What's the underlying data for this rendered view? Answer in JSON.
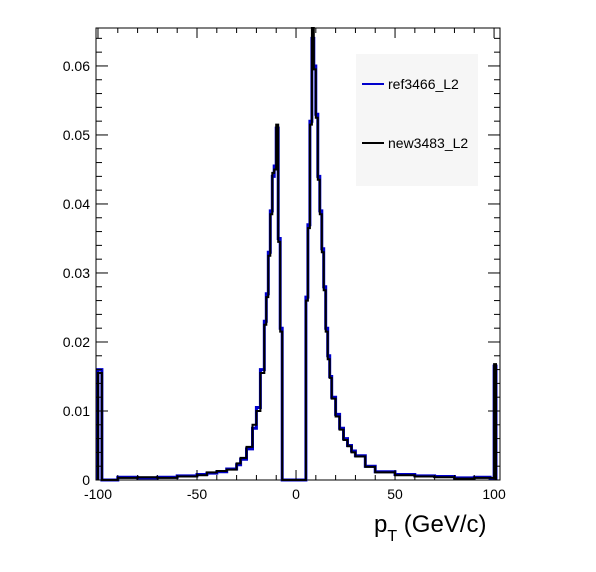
{
  "chart_data": {
    "type": "line",
    "title": "",
    "xlabel": "p",
    "xlabel_sub": "T",
    "xlabel_unit": " (GeV/c)",
    "ylabel": "",
    "xlim": [
      -101,
      103
    ],
    "ylim": [
      0,
      0.0655
    ],
    "grid": false,
    "legend_position": "top-right",
    "x_ticks": [
      {
        "value": -100,
        "label": "-100"
      },
      {
        "value": -50,
        "label": "-50"
      },
      {
        "value": 0,
        "label": "0"
      },
      {
        "value": 50,
        "label": "50"
      },
      {
        "value": 100,
        "label": "100"
      }
    ],
    "y_ticks": [
      {
        "value": 0,
        "label": "0"
      },
      {
        "value": 0.01,
        "label": "0.01"
      },
      {
        "value": 0.02,
        "label": "0.02"
      },
      {
        "value": 0.03,
        "label": "0.03"
      },
      {
        "value": 0.04,
        "label": "0.04"
      },
      {
        "value": 0.05,
        "label": "0.05"
      },
      {
        "value": 0.06,
        "label": "0.06"
      }
    ],
    "series": [
      {
        "name": "ref3466_L2",
        "color": "#0000cc",
        "points": [
          [
            -100,
            0.016
          ],
          [
            -98,
            0.0
          ],
          [
            -90,
            0.0004
          ],
          [
            -80,
            0.0003
          ],
          [
            -70,
            0.0004
          ],
          [
            -60,
            0.0006
          ],
          [
            -50,
            0.0008
          ],
          [
            -45,
            0.001
          ],
          [
            -40,
            0.0012
          ],
          [
            -35,
            0.0016
          ],
          [
            -30,
            0.0022
          ],
          [
            -28,
            0.003
          ],
          [
            -25,
            0.0045
          ],
          [
            -22,
            0.0075
          ],
          [
            -20,
            0.0105
          ],
          [
            -18,
            0.016
          ],
          [
            -16,
            0.023
          ],
          [
            -15,
            0.027
          ],
          [
            -14,
            0.033
          ],
          [
            -13,
            0.039
          ],
          [
            -12,
            0.044
          ],
          [
            -11,
            0.0455
          ],
          [
            -10,
            0.051
          ],
          [
            -9,
            0.035
          ],
          [
            -8,
            0.022
          ],
          [
            -7,
            0.0
          ],
          [
            -6,
            0.0
          ],
          [
            -4,
            0.0
          ],
          [
            -2,
            0.0
          ],
          [
            0,
            0.0
          ],
          [
            2,
            0.0
          ],
          [
            4,
            0.0
          ],
          [
            5,
            0.0265
          ],
          [
            6,
            0.037
          ],
          [
            7,
            0.052
          ],
          [
            8,
            0.064
          ],
          [
            9,
            0.06
          ],
          [
            10,
            0.053
          ],
          [
            11,
            0.044
          ],
          [
            12,
            0.039
          ],
          [
            13,
            0.0335
          ],
          [
            14,
            0.028
          ],
          [
            15,
            0.022
          ],
          [
            16,
            0.018
          ],
          [
            17,
            0.015
          ],
          [
            18,
            0.012
          ],
          [
            20,
            0.0095
          ],
          [
            22,
            0.0075
          ],
          [
            24,
            0.006
          ],
          [
            26,
            0.005
          ],
          [
            28,
            0.0042
          ],
          [
            30,
            0.0035
          ],
          [
            35,
            0.002
          ],
          [
            40,
            0.0012
          ],
          [
            50,
            0.0008
          ],
          [
            60,
            0.0006
          ],
          [
            70,
            0.0005
          ],
          [
            80,
            0.0003
          ],
          [
            90,
            0.0004
          ],
          [
            98,
            0.0002
          ],
          [
            100,
            0.0165
          ],
          [
            101,
            0.0
          ]
        ]
      },
      {
        "name": "new3483_L2",
        "color": "#000000",
        "points": [
          [
            -100,
            0.0155
          ],
          [
            -98,
            0.0
          ],
          [
            -90,
            0.0003
          ],
          [
            -80,
            0.0004
          ],
          [
            -70,
            0.0003
          ],
          [
            -60,
            0.0005
          ],
          [
            -50,
            0.0007
          ],
          [
            -45,
            0.0011
          ],
          [
            -40,
            0.0013
          ],
          [
            -35,
            0.0015
          ],
          [
            -30,
            0.0024
          ],
          [
            -28,
            0.0032
          ],
          [
            -25,
            0.0048
          ],
          [
            -22,
            0.008
          ],
          [
            -20,
            0.01
          ],
          [
            -18,
            0.0155
          ],
          [
            -16,
            0.0225
          ],
          [
            -15,
            0.0265
          ],
          [
            -14,
            0.0325
          ],
          [
            -13,
            0.0385
          ],
          [
            -12,
            0.0445
          ],
          [
            -11,
            0.045
          ],
          [
            -10,
            0.0515
          ],
          [
            -9,
            0.0345
          ],
          [
            -8,
            0.0215
          ],
          [
            -7,
            0.0
          ],
          [
            -6,
            0.0
          ],
          [
            -4,
            0.0
          ],
          [
            -2,
            0.0
          ],
          [
            0,
            0.0
          ],
          [
            2,
            0.0
          ],
          [
            4,
            0.0
          ],
          [
            5,
            0.026
          ],
          [
            6,
            0.0365
          ],
          [
            7,
            0.0515
          ],
          [
            8,
            0.0655
          ],
          [
            9,
            0.0595
          ],
          [
            10,
            0.0525
          ],
          [
            11,
            0.0435
          ],
          [
            12,
            0.0385
          ],
          [
            13,
            0.033
          ],
          [
            14,
            0.0275
          ],
          [
            15,
            0.0215
          ],
          [
            16,
            0.0175
          ],
          [
            17,
            0.0148
          ],
          [
            18,
            0.0118
          ],
          [
            20,
            0.0092
          ],
          [
            22,
            0.0073
          ],
          [
            24,
            0.0058
          ],
          [
            26,
            0.0049
          ],
          [
            28,
            0.004
          ],
          [
            30,
            0.0034
          ],
          [
            35,
            0.0019
          ],
          [
            40,
            0.0011
          ],
          [
            50,
            0.0007
          ],
          [
            60,
            0.0005
          ],
          [
            70,
            0.0004
          ],
          [
            80,
            0.0002
          ],
          [
            90,
            0.0003
          ],
          [
            98,
            0.0003
          ],
          [
            100,
            0.0168
          ],
          [
            101,
            0.0
          ]
        ]
      }
    ]
  }
}
